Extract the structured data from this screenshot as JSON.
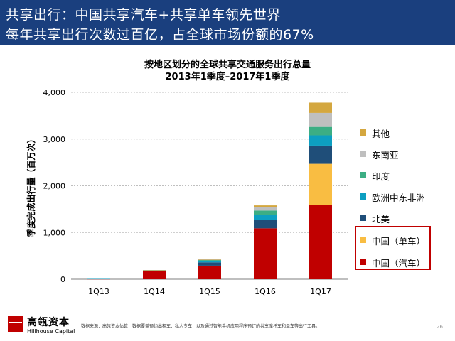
{
  "header": {
    "line1": "共享出行：中国共享汽车+共享单车领先世界",
    "line2": "每年共享出行次数过百亿，占全球市场份额的67%"
  },
  "chart_data": {
    "type": "bar",
    "stacked": true,
    "title": "按地区划分的全球共享交通服务出行总量",
    "subtitle": "2013年1季度–2017年1季度",
    "ylabel": "季度完成出行量（百万次）",
    "xlabel": "",
    "ylim": [
      0,
      4000
    ],
    "yticks": [
      0,
      1000,
      2000,
      3000,
      4000
    ],
    "ytick_labels": [
      "0",
      "1,000",
      "2,000",
      "3,000",
      "4,000"
    ],
    "grid": true,
    "legend_position": "right",
    "categories": [
      "1Q13",
      "1Q14",
      "1Q15",
      "1Q16",
      "1Q17"
    ],
    "series": [
      {
        "name": "中国（汽车）",
        "color": "#c00000",
        "values": [
          5,
          170,
          290,
          1090,
          1590
        ]
      },
      {
        "name": "中国（单车）",
        "color": "#f9bd42",
        "values": [
          0,
          0,
          0,
          0,
          880
        ]
      },
      {
        "name": "北美",
        "color": "#1f4e79",
        "values": [
          2,
          15,
          70,
          180,
          390
        ]
      },
      {
        "name": "欧洲中东非洲",
        "color": "#0d9fc1",
        "values": [
          1,
          6,
          30,
          110,
          220
        ]
      },
      {
        "name": "印度",
        "color": "#3cae84",
        "values": [
          0,
          2,
          20,
          90,
          180
        ]
      },
      {
        "name": "东南亚",
        "color": "#bfbfbf",
        "values": [
          0,
          1,
          10,
          70,
          300
        ]
      },
      {
        "name": "其他",
        "color": "#d4a73f",
        "values": [
          0,
          1,
          5,
          40,
          220
        ]
      }
    ]
  },
  "footer": {
    "brand_cn": "高瓴资本",
    "brand_en": "Hillhouse Capital",
    "source": "数据来源：高瓴资本估算，数据覆盖预约出租车、私人专车，以及通过智能手机应用程序预订的共享摩托车和单车等出行工具。",
    "page_number": "26"
  }
}
